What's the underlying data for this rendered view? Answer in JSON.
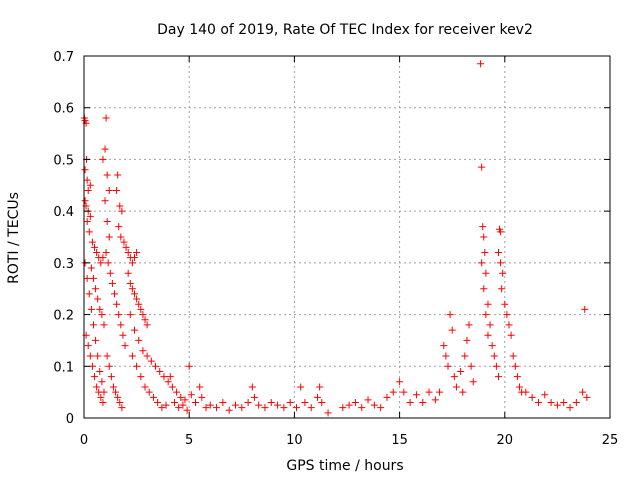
{
  "chart_data": {
    "type": "scatter",
    "title": "Day 140 of 2019, Rate Of TEC Index for receiver kev2",
    "xlabel": "GPS time / hours",
    "ylabel": "ROTI / TECUs",
    "xlim": [
      0,
      25
    ],
    "ylim": [
      0,
      0.7
    ],
    "x_ticks": [
      0,
      5,
      10,
      15,
      20,
      25
    ],
    "y_ticks": [
      0,
      0.1,
      0.2,
      0.3,
      0.4,
      0.5,
      0.6,
      0.7
    ],
    "grid": true,
    "marker": "+",
    "color": "#ff0000",
    "points": [
      [
        0.02,
        0.58
      ],
      [
        0.05,
        0.575
      ],
      [
        0.1,
        0.57
      ],
      [
        0.12,
        0.5
      ],
      [
        0.05,
        0.48
      ],
      [
        0.15,
        0.46
      ],
      [
        0.2,
        0.44
      ],
      [
        0.3,
        0.45
      ],
      [
        0.05,
        0.42
      ],
      [
        0.1,
        0.41
      ],
      [
        0.2,
        0.4
      ],
      [
        0.3,
        0.39
      ],
      [
        0.15,
        0.38
      ],
      [
        0.25,
        0.36
      ],
      [
        0.4,
        0.34
      ],
      [
        0.5,
        0.33
      ],
      [
        0.6,
        0.32
      ],
      [
        0.7,
        0.31
      ],
      [
        0.8,
        0.3
      ],
      [
        0.9,
        0.31
      ],
      [
        0.35,
        0.29
      ],
      [
        0.45,
        0.27
      ],
      [
        0.55,
        0.25
      ],
      [
        0.65,
        0.23
      ],
      [
        0.75,
        0.21
      ],
      [
        0.85,
        0.2
      ],
      [
        0.95,
        0.18
      ],
      [
        0.1,
        0.16
      ],
      [
        0.2,
        0.14
      ],
      [
        0.3,
        0.12
      ],
      [
        0.4,
        0.1
      ],
      [
        0.5,
        0.08
      ],
      [
        0.6,
        0.06
      ],
      [
        0.7,
        0.05
      ],
      [
        0.8,
        0.04
      ],
      [
        0.9,
        0.03
      ],
      [
        0.05,
        0.3
      ],
      [
        0.15,
        0.27
      ],
      [
        0.25,
        0.24
      ],
      [
        0.35,
        0.21
      ],
      [
        0.45,
        0.18
      ],
      [
        0.55,
        0.15
      ],
      [
        0.65,
        0.12
      ],
      [
        0.75,
        0.09
      ],
      [
        0.85,
        0.07
      ],
      [
        0.95,
        0.05
      ],
      [
        1.05,
        0.58
      ],
      [
        1.0,
        0.52
      ],
      [
        0.9,
        0.5
      ],
      [
        1.1,
        0.47
      ],
      [
        1.2,
        0.44
      ],
      [
        1.0,
        0.42
      ],
      [
        1.1,
        0.38
      ],
      [
        1.2,
        0.35
      ],
      [
        1.05,
        0.32
      ],
      [
        1.15,
        0.3
      ],
      [
        1.25,
        0.28
      ],
      [
        1.35,
        0.26
      ],
      [
        1.45,
        0.24
      ],
      [
        1.55,
        0.22
      ],
      [
        1.65,
        0.2
      ],
      [
        1.75,
        0.18
      ],
      [
        1.85,
        0.16
      ],
      [
        1.95,
        0.14
      ],
      [
        1.1,
        0.12
      ],
      [
        1.2,
        0.1
      ],
      [
        1.3,
        0.08
      ],
      [
        1.4,
        0.06
      ],
      [
        1.5,
        0.05
      ],
      [
        1.6,
        0.04
      ],
      [
        1.7,
        0.03
      ],
      [
        1.8,
        0.02
      ],
      [
        1.6,
        0.47
      ],
      [
        1.55,
        0.44
      ],
      [
        1.7,
        0.41
      ],
      [
        1.8,
        0.4
      ],
      [
        1.65,
        0.37
      ],
      [
        1.75,
        0.35
      ],
      [
        1.9,
        0.34
      ],
      [
        2.0,
        0.33
      ],
      [
        2.1,
        0.32
      ],
      [
        2.2,
        0.31
      ],
      [
        2.3,
        0.3
      ],
      [
        2.4,
        0.31
      ],
      [
        2.5,
        0.32
      ],
      [
        2.1,
        0.28
      ],
      [
        2.2,
        0.26
      ],
      [
        2.3,
        0.25
      ],
      [
        2.4,
        0.24
      ],
      [
        2.5,
        0.23
      ],
      [
        2.6,
        0.22
      ],
      [
        2.7,
        0.21
      ],
      [
        2.8,
        0.2
      ],
      [
        2.9,
        0.19
      ],
      [
        3.0,
        0.18
      ],
      [
        2.2,
        0.2
      ],
      [
        2.4,
        0.17
      ],
      [
        2.6,
        0.15
      ],
      [
        2.8,
        0.13
      ],
      [
        3.0,
        0.12
      ],
      [
        3.2,
        0.11
      ],
      [
        3.4,
        0.1
      ],
      [
        3.6,
        0.09
      ],
      [
        3.8,
        0.08
      ],
      [
        4.0,
        0.07
      ],
      [
        2.3,
        0.12
      ],
      [
        2.5,
        0.1
      ],
      [
        2.7,
        0.08
      ],
      [
        2.9,
        0.06
      ],
      [
        3.1,
        0.05
      ],
      [
        3.3,
        0.04
      ],
      [
        3.5,
        0.03
      ],
      [
        3.7,
        0.02
      ],
      [
        3.9,
        0.025
      ],
      [
        4.1,
        0.08
      ],
      [
        4.2,
        0.06
      ],
      [
        4.4,
        0.05
      ],
      [
        4.6,
        0.04
      ],
      [
        4.8,
        0.035
      ],
      [
        4.3,
        0.03
      ],
      [
        4.5,
        0.02
      ],
      [
        4.7,
        0.025
      ],
      [
        4.9,
        0.015
      ],
      [
        5.0,
        0.1
      ],
      [
        5.1,
        0.045
      ],
      [
        5.3,
        0.03
      ],
      [
        5.5,
        0.06
      ],
      [
        5.6,
        0.04
      ],
      [
        5.8,
        0.02
      ],
      [
        6.0,
        0.025
      ],
      [
        6.3,
        0.02
      ],
      [
        6.6,
        0.03
      ],
      [
        6.9,
        0.015
      ],
      [
        7.2,
        0.025
      ],
      [
        7.5,
        0.02
      ],
      [
        7.8,
        0.03
      ],
      [
        8.0,
        0.06
      ],
      [
        8.1,
        0.04
      ],
      [
        8.3,
        0.025
      ],
      [
        8.6,
        0.02
      ],
      [
        8.9,
        0.03
      ],
      [
        9.2,
        0.025
      ],
      [
        9.5,
        0.02
      ],
      [
        9.8,
        0.03
      ],
      [
        10.1,
        0.02
      ],
      [
        10.3,
        0.06
      ],
      [
        10.5,
        0.03
      ],
      [
        10.8,
        0.02
      ],
      [
        11.1,
        0.04
      ],
      [
        11.2,
        0.06
      ],
      [
        11.3,
        0.03
      ],
      [
        11.6,
        0.01
      ],
      [
        12.3,
        0.02
      ],
      [
        12.6,
        0.025
      ],
      [
        12.9,
        0.03
      ],
      [
        13.2,
        0.02
      ],
      [
        13.5,
        0.035
      ],
      [
        13.8,
        0.025
      ],
      [
        14.1,
        0.02
      ],
      [
        14.4,
        0.04
      ],
      [
        14.7,
        0.05
      ],
      [
        15.0,
        0.07
      ],
      [
        15.2,
        0.05
      ],
      [
        15.5,
        0.03
      ],
      [
        15.8,
        0.045
      ],
      [
        16.1,
        0.03
      ],
      [
        16.4,
        0.05
      ],
      [
        16.7,
        0.035
      ],
      [
        16.9,
        0.05
      ],
      [
        17.1,
        0.14
      ],
      [
        17.2,
        0.12
      ],
      [
        17.3,
        0.1
      ],
      [
        17.4,
        0.2
      ],
      [
        17.5,
        0.17
      ],
      [
        17.6,
        0.08
      ],
      [
        17.7,
        0.06
      ],
      [
        17.9,
        0.09
      ],
      [
        18.0,
        0.05
      ],
      [
        18.1,
        0.12
      ],
      [
        18.2,
        0.15
      ],
      [
        18.3,
        0.18
      ],
      [
        18.4,
        0.1
      ],
      [
        18.5,
        0.07
      ],
      [
        18.85,
        0.685
      ],
      [
        18.9,
        0.485
      ],
      [
        18.95,
        0.37
      ],
      [
        19.0,
        0.35
      ],
      [
        19.05,
        0.32
      ],
      [
        18.9,
        0.3
      ],
      [
        19.1,
        0.28
      ],
      [
        19.0,
        0.25
      ],
      [
        19.2,
        0.22
      ],
      [
        19.1,
        0.2
      ],
      [
        19.3,
        0.18
      ],
      [
        19.2,
        0.16
      ],
      [
        19.4,
        0.14
      ],
      [
        19.5,
        0.12
      ],
      [
        19.6,
        0.1
      ],
      [
        19.7,
        0.08
      ],
      [
        19.75,
        0.365
      ],
      [
        19.8,
        0.36
      ],
      [
        19.7,
        0.32
      ],
      [
        19.8,
        0.3
      ],
      [
        19.9,
        0.28
      ],
      [
        19.85,
        0.25
      ],
      [
        20.0,
        0.22
      ],
      [
        20.1,
        0.2
      ],
      [
        20.2,
        0.18
      ],
      [
        20.3,
        0.16
      ],
      [
        20.4,
        0.12
      ],
      [
        20.5,
        0.1
      ],
      [
        20.6,
        0.08
      ],
      [
        20.7,
        0.06
      ],
      [
        20.8,
        0.05
      ],
      [
        21.0,
        0.05
      ],
      [
        21.3,
        0.04
      ],
      [
        21.6,
        0.03
      ],
      [
        21.9,
        0.045
      ],
      [
        22.2,
        0.03
      ],
      [
        22.5,
        0.025
      ],
      [
        22.8,
        0.03
      ],
      [
        23.1,
        0.02
      ],
      [
        23.4,
        0.03
      ],
      [
        23.7,
        0.05
      ],
      [
        23.8,
        0.21
      ],
      [
        23.9,
        0.04
      ]
    ]
  }
}
